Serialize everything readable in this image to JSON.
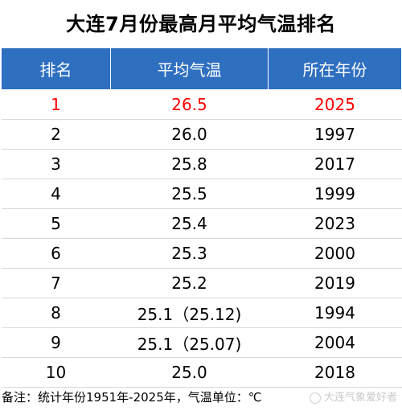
{
  "title": "大连7月份最高月平均气温排名",
  "table": {
    "headers": [
      "排名",
      "平均气温",
      "所在年份"
    ],
    "rows": [
      {
        "rank": "1",
        "temp": "26.5",
        "year": "2025"
      },
      {
        "rank": "2",
        "temp": "26.0",
        "year": "1997"
      },
      {
        "rank": "3",
        "temp": "25.8",
        "year": "2017"
      },
      {
        "rank": "4",
        "temp": "25.5",
        "year": "1999"
      },
      {
        "rank": "5",
        "temp": "25.4",
        "year": "2023"
      },
      {
        "rank": "6",
        "temp": "25.3",
        "year": "2000"
      },
      {
        "rank": "7",
        "temp": "25.2",
        "year": "2019"
      },
      {
        "rank": "8",
        "temp": "25.1（25.12)",
        "year": "1994"
      },
      {
        "rank": "9",
        "temp": "25.1（25.07)",
        "year": "2004"
      },
      {
        "rank": "10",
        "temp": "25.0",
        "year": "2018"
      }
    ]
  },
  "footnote": "备注：统计年份1951年-2025年，气温单位：℃",
  "watermark": "大连气象爱好者",
  "colors": {
    "header_bg": "#2e6fc0",
    "header_text": "#ffffff",
    "highlight": "#ff0000"
  }
}
